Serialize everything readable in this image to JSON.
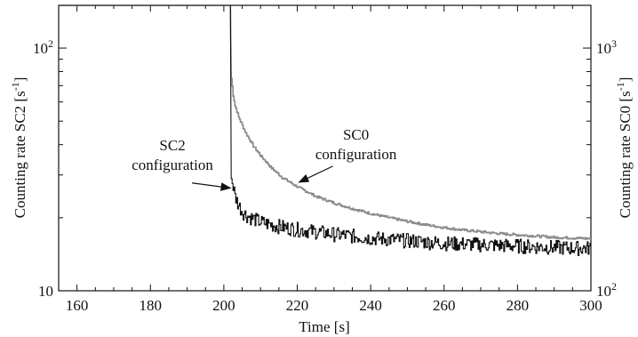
{
  "chart_data": {
    "type": "line",
    "xlabel": "Time [s]",
    "ylabel_left": "Counting rate SC2 [s",
    "ylabel_left_sup": "-1",
    "ylabel_left_close": "]",
    "ylabel_right": "Counting rate SC0 [s",
    "ylabel_right_sup": "-1",
    "ylabel_right_close": "]",
    "xlim": [
      155,
      300
    ],
    "ylim_left": [
      10,
      150
    ],
    "ylim_right": [
      100,
      1500
    ],
    "yscale": "log",
    "x_ticks": [
      160,
      180,
      200,
      220,
      240,
      260,
      280,
      300
    ],
    "x_tick_labels": [
      "160",
      "180",
      "200",
      "220",
      "240",
      "260",
      "280",
      "300"
    ],
    "y_left_tick_labels": [
      {
        "value": 100,
        "label": "10",
        "sup": "2"
      },
      {
        "value": 10,
        "label": "10",
        "sup": ""
      }
    ],
    "y_right_tick_labels": [
      {
        "value": 1000,
        "label": "10",
        "sup": "3"
      },
      {
        "value": 100,
        "label": "10",
        "sup": "2"
      }
    ],
    "grid": false,
    "series": [
      {
        "axis": "left",
        "color": "#111111",
        "x": [
          155,
          201.8,
          202.0,
          202.6,
          203,
          204,
          205,
          206,
          208,
          210,
          213,
          216,
          220,
          225,
          230,
          235,
          240,
          245,
          250,
          255,
          260,
          265,
          270,
          275,
          280,
          285,
          290,
          295,
          300
        ],
        "values": [
          150,
          150,
          29.0,
          26.5,
          24.5,
          22.5,
          21.2,
          20.5,
          19.8,
          19.2,
          18.7,
          18.3,
          17.9,
          17.5,
          17.1,
          16.8,
          16.5,
          16.3,
          16.1,
          15.9,
          15.7,
          15.6,
          15.5,
          15.4,
          15.3,
          15.2,
          15.1,
          15.0,
          15.0
        ]
      },
      {
        "axis": "right",
        "color": "#8a8a8a",
        "x": [
          155,
          201.8,
          202.0,
          202.5,
          203,
          204,
          205,
          206,
          208,
          210,
          213,
          216,
          220,
          225,
          230,
          235,
          240,
          245,
          250,
          255,
          260,
          265,
          270,
          275,
          280,
          285,
          290,
          295,
          300
        ],
        "values": [
          1500,
          1500,
          750,
          640,
          580,
          520,
          480,
          445,
          395,
          360,
          320,
          292,
          268,
          245,
          230,
          218,
          208,
          200,
          193,
          187,
          182,
          178,
          175,
          172,
          170,
          168,
          166,
          165,
          164
        ]
      }
    ],
    "annotations": [
      {
        "lines": [
          "SC2",
          "configuration"
        ],
        "x": 186,
        "y": 38,
        "axis": "left",
        "arrow_to_x": 201.8,
        "arrow_to_y": 26.5
      },
      {
        "lines": [
          "SC0",
          "configuration"
        ],
        "x": 236,
        "y": 420,
        "axis": "right",
        "arrow_to_x": 220.5,
        "arrow_to_y": 280
      }
    ]
  }
}
